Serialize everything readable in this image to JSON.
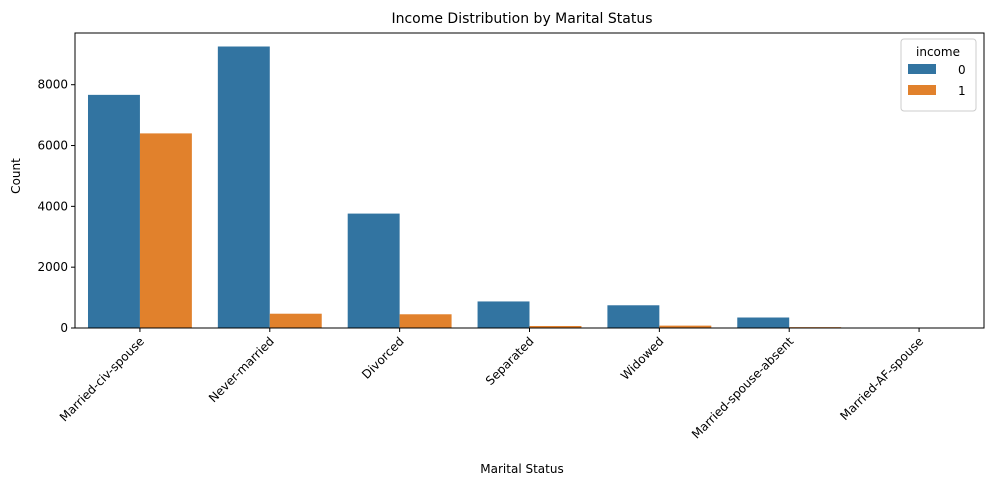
{
  "chart_data": {
    "type": "bar",
    "title": "Income Distribution by Marital Status",
    "xlabel": "Marital Status",
    "ylabel": "Count",
    "ylim": [
      0,
      9700
    ],
    "yticks": [
      0,
      2000,
      4000,
      6000,
      8000
    ],
    "categories": [
      "Married-civ-spouse",
      "Never-married",
      "Divorced",
      "Separated",
      "Widowed",
      "Married-spouse-absent",
      "Married-AF-spouse"
    ],
    "series": [
      {
        "name": "0",
        "color": "#3274a1",
        "values": [
          7666,
          9256,
          3762,
          873,
          747,
          345,
          14
        ]
      },
      {
        "name": "1",
        "color": "#e1812c",
        "values": [
          6399,
          470,
          451,
          66,
          78,
          28,
          9
        ]
      }
    ],
    "legend": {
      "title": "income",
      "placement": "top-right"
    },
    "grid": false
  }
}
